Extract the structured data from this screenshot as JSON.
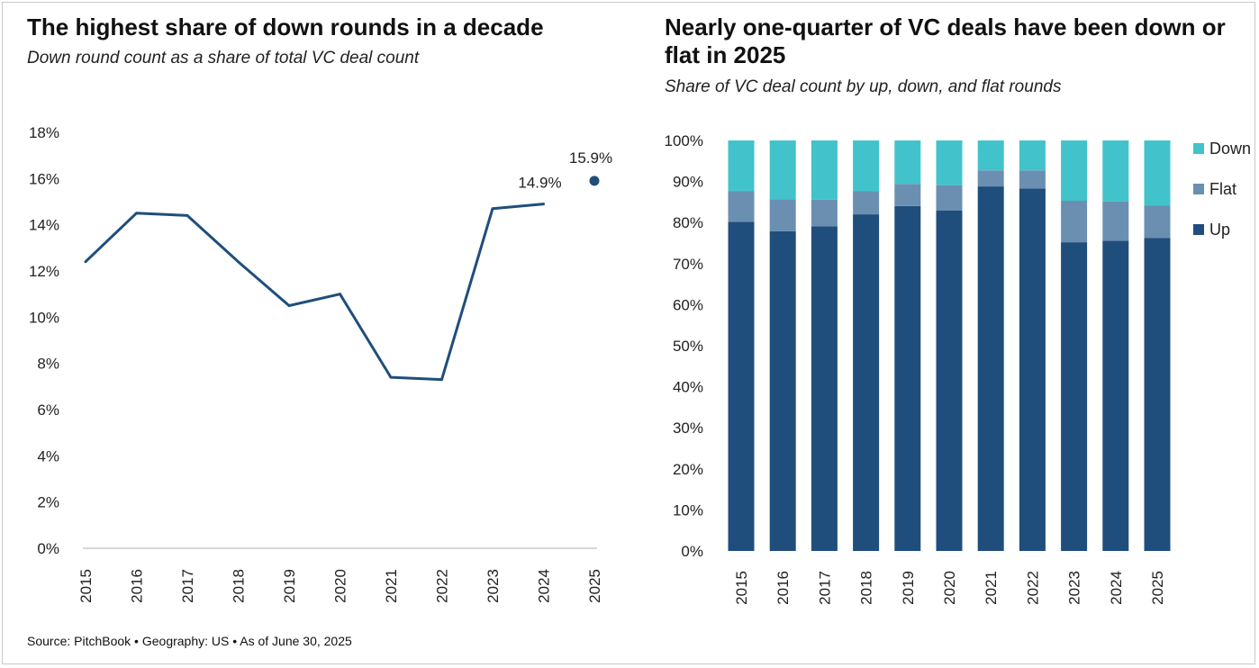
{
  "charts": {
    "left": {
      "title": "The highest share of down rounds in a decade",
      "subtitle": "Down round count as a share of total VC deal count"
    },
    "right": {
      "title": "Nearly one-quarter of VC deals have been down or flat in 2025",
      "subtitle": "Share of VC deal count by up, down, and flat rounds"
    }
  },
  "footer": {
    "source": "Source: PitchBook • Geography: US • As of June 30, 2025"
  },
  "colors": {
    "line": "#1f4e7c",
    "up": "#1f4e7c",
    "flat": "#6b8fb0",
    "down": "#42c3cb",
    "axis": "#c8c8c8"
  },
  "chart_data": [
    {
      "type": "line",
      "title": "The highest share of down rounds in a decade",
      "subtitle": "Down round count as a share of total VC deal count",
      "x": [
        "2015",
        "2016",
        "2017",
        "2018",
        "2019",
        "2020",
        "2021",
        "2022",
        "2023",
        "2024",
        "2025"
      ],
      "series": [
        {
          "values": [
            12.4,
            14.5,
            14.4,
            12.4,
            10.5,
            11.0,
            7.4,
            7.3,
            14.7,
            14.9,
            null
          ]
        }
      ],
      "point_series": [
        {
          "values": [
            null,
            null,
            null,
            null,
            null,
            null,
            null,
            null,
            null,
            null,
            15.9
          ]
        }
      ],
      "data_labels": {
        "2024": "14.9%",
        "2025": "15.9%"
      },
      "yticks": [
        "0%",
        "2%",
        "4%",
        "6%",
        "8%",
        "10%",
        "12%",
        "14%",
        "16%",
        "18%"
      ],
      "ylim": [
        0,
        18
      ],
      "grid": false
    },
    {
      "type": "bar",
      "stacked": true,
      "title": "Nearly one-quarter of VC deals have been down or flat in 2025",
      "subtitle": "Share of VC deal count by up, down, and flat rounds",
      "categories": [
        "2015",
        "2016",
        "2017",
        "2018",
        "2019",
        "2020",
        "2021",
        "2022",
        "2023",
        "2024",
        "2025"
      ],
      "series": [
        {
          "name": "Up",
          "values": [
            80.2,
            77.9,
            79.1,
            82.0,
            84.0,
            82.9,
            88.8,
            88.3,
            75.2,
            75.6,
            76.2
          ]
        },
        {
          "name": "Flat",
          "values": [
            7.5,
            7.8,
            6.5,
            5.6,
            5.4,
            6.2,
            3.9,
            4.4,
            10.1,
            9.5,
            7.9
          ]
        },
        {
          "name": "Down",
          "values": [
            12.3,
            14.3,
            14.4,
            12.4,
            10.6,
            10.9,
            7.3,
            7.3,
            14.7,
            14.9,
            15.9
          ]
        }
      ],
      "legend_order": [
        "Down",
        "Flat",
        "Up"
      ],
      "legend_position": "right",
      "yticks": [
        "0%",
        "10%",
        "20%",
        "30%",
        "40%",
        "50%",
        "60%",
        "70%",
        "80%",
        "90%",
        "100%"
      ],
      "ylim": [
        0,
        100
      ],
      "grid": false
    }
  ]
}
